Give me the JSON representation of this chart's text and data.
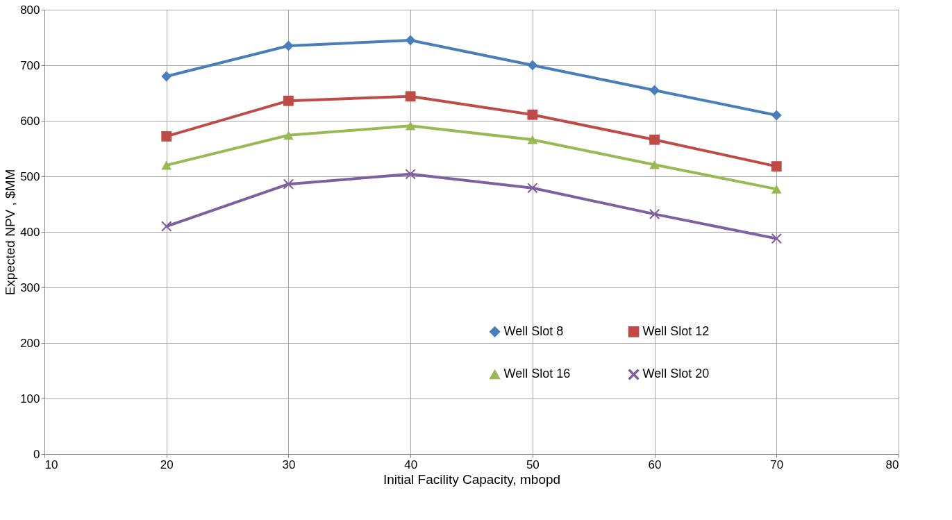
{
  "chart_data": {
    "type": "line",
    "xlabel": "Initial Facility Capacity,  mbopd",
    "ylabel": "Expected NPV , $MM",
    "x": [
      20,
      30,
      40,
      50,
      60,
      70
    ],
    "series": [
      {
        "name": "Well Slot 8",
        "color": "#4a7ebb",
        "marker": "diamond",
        "values": [
          680,
          735,
          745,
          700,
          655,
          610
        ]
      },
      {
        "name": "Well Slot 12",
        "color": "#be4b48",
        "marker": "square",
        "values": [
          572,
          636,
          644,
          611,
          566,
          518
        ]
      },
      {
        "name": "Well Slot 16",
        "color": "#98b954",
        "marker": "triangle",
        "values": [
          520,
          574,
          591,
          566,
          521,
          477
        ]
      },
      {
        "name": "Well Slot 20",
        "color": "#7d60a0",
        "marker": "cross",
        "values": [
          410,
          486,
          504,
          479,
          432,
          388
        ]
      }
    ],
    "xlim": [
      10,
      80
    ],
    "xticks": [
      10,
      20,
      30,
      40,
      50,
      60,
      70,
      80
    ],
    "ylim": [
      0,
      800
    ],
    "yticks": [
      0,
      100,
      200,
      300,
      400,
      500,
      600,
      700,
      800
    ],
    "grid": true,
    "legend": "bottom right",
    "line_style": "solid"
  }
}
